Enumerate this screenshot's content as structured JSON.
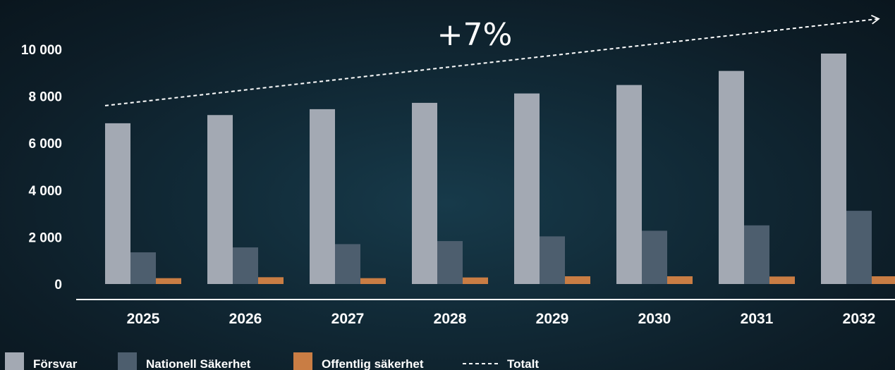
{
  "chart_data": {
    "type": "bar",
    "categories": [
      "2025",
      "2026",
      "2027",
      "2028",
      "2029",
      "2030",
      "2031",
      "2032"
    ],
    "series": [
      {
        "name": "Försvar",
        "color": "#a3a9b3",
        "values": [
          6850,
          7200,
          7450,
          7720,
          8120,
          8480,
          9080,
          9820
        ]
      },
      {
        "name": "Nationell Säkerhet",
        "color": "#4d5e6e",
        "values": [
          1350,
          1560,
          1700,
          1830,
          2030,
          2270,
          2500,
          3120
        ]
      },
      {
        "name": "Offentlig säkerhet",
        "color": "#c97d44",
        "values": [
          250,
          290,
          250,
          280,
          330,
          330,
          320,
          330
        ]
      }
    ],
    "trend": {
      "name": "Totalt",
      "style": "dashed",
      "color": "#ffffff",
      "y_start": 7600,
      "y_end": 11300
    },
    "annotation": "+7%",
    "yticks": [
      "0",
      "2 000",
      "4 000",
      "6 000",
      "8 000",
      "10 000"
    ],
    "ytick_values": [
      0,
      2000,
      4000,
      6000,
      8000,
      10000
    ],
    "ylim": [
      0,
      11000
    ],
    "title": "",
    "xlabel": "",
    "ylabel": "",
    "grid": false,
    "legend_position": "bottom-left"
  }
}
